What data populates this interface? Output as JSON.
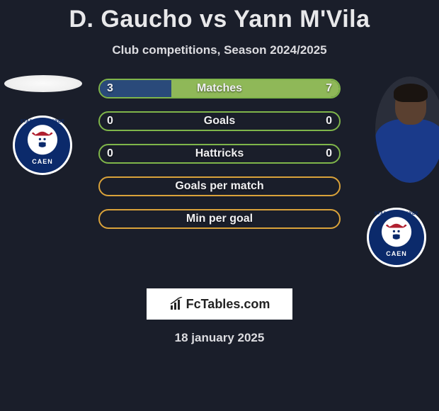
{
  "title": "D. Gaucho vs Yann M'Vila",
  "subtitle": "Club competitions, Season 2024/2025",
  "date": "18 january 2025",
  "logo_text": "FcTables.com",
  "colors": {
    "background": "#1a1e2a",
    "text": "#e8e8ea",
    "border_green": "#7fb54a",
    "fill_green": "#8fb858",
    "border_orange": "#d9a23a",
    "fill_blue_dark": "#2a4a7a",
    "crest_blue": "#0b2a6b",
    "crest_red": "#b02030"
  },
  "crest": {
    "team_name": "CAEN",
    "arc_text": "STADE MALHERBE"
  },
  "bars": [
    {
      "label": "Matches",
      "left_val": "3",
      "right_val": "7",
      "border_color": "#7fb54a",
      "left_fill_color": "#2a4a7a",
      "left_fill_pct": 30,
      "right_fill_color": "#8fb858",
      "right_fill_pct": 70
    },
    {
      "label": "Goals",
      "left_val": "0",
      "right_val": "0",
      "border_color": "#7fb54a",
      "left_fill_color": null,
      "left_fill_pct": 0,
      "right_fill_color": null,
      "right_fill_pct": 0
    },
    {
      "label": "Hattricks",
      "left_val": "0",
      "right_val": "0",
      "border_color": "#7fb54a",
      "left_fill_color": null,
      "left_fill_pct": 0,
      "right_fill_color": null,
      "right_fill_pct": 0
    },
    {
      "label": "Goals per match",
      "left_val": "",
      "right_val": "",
      "border_color": "#d9a23a",
      "left_fill_color": null,
      "left_fill_pct": 0,
      "right_fill_color": null,
      "right_fill_pct": 0
    },
    {
      "label": "Min per goal",
      "left_val": "",
      "right_val": "",
      "border_color": "#d9a23a",
      "left_fill_color": null,
      "left_fill_pct": 0,
      "right_fill_color": null,
      "right_fill_pct": 0
    }
  ]
}
